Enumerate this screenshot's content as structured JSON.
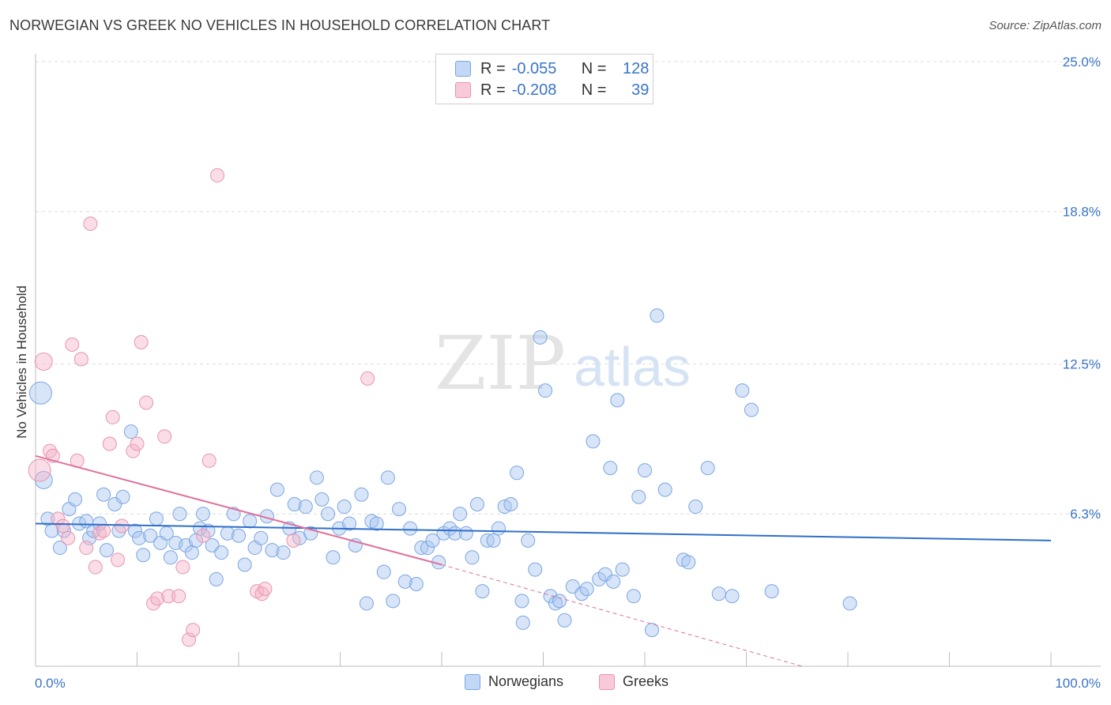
{
  "header": {
    "title": "NORWEGIAN VS GREEK NO VEHICLES IN HOUSEHOLD CORRELATION CHART",
    "source": "Source: ZipAtlas.com"
  },
  "watermark": {
    "zip": "ZIP",
    "atlas": "atlas"
  },
  "legend": {
    "rows": [
      {
        "r_label": "R =",
        "r_value": "-0.055",
        "n_label": "N =",
        "n_value": "128",
        "color": "#a9c6f2"
      },
      {
        "r_label": "R =",
        "r_value": "-0.208",
        "n_label": "N =",
        "n_value": "39",
        "color": "#f5b3c8"
      }
    ]
  },
  "bottom_legend": [
    {
      "label": "Norwegians",
      "color": "#a9c6f2"
    },
    {
      "label": "Greeks",
      "color": "#f5b3c8"
    }
  ],
  "chart_data": {
    "type": "scatter",
    "title": "NORWEGIAN VS GREEK NO VEHICLES IN HOUSEHOLD CORRELATION CHART",
    "xlabel": "",
    "ylabel": "No Vehicles in Household",
    "xlim": [
      0,
      100
    ],
    "ylim": [
      0,
      25
    ],
    "x_tick_labels": [
      "0.0%",
      "100.0%"
    ],
    "y_ticks": [
      6.3,
      12.5,
      18.8,
      25.0
    ],
    "y_tick_labels": [
      "6.3%",
      "12.5%",
      "18.8%",
      "25.0%"
    ],
    "grid": true,
    "series": [
      {
        "name": "Norwegians",
        "color": "#a9c6f2",
        "stroke": "#7aa6e0",
        "trend": {
          "x0": 0,
          "y0": 5.9,
          "x1": 100,
          "y1": 5.2,
          "color": "#2f6fc9"
        },
        "points": [
          [
            0.5,
            11.3,
            3
          ],
          [
            0.8,
            7.7,
            2
          ],
          [
            1.2,
            6.1,
            1
          ],
          [
            1.6,
            5.6,
            1
          ],
          [
            2.4,
            4.9,
            1
          ],
          [
            2.8,
            5.6,
            1
          ],
          [
            3.3,
            6.5,
            1
          ],
          [
            3.9,
            6.9,
            1
          ],
          [
            4.3,
            5.9,
            1
          ],
          [
            5.0,
            6.0,
            1
          ],
          [
            5.3,
            5.3,
            1
          ],
          [
            5.7,
            5.6,
            1
          ],
          [
            6.3,
            5.9,
            1
          ],
          [
            6.7,
            7.1,
            1
          ],
          [
            7.0,
            4.8,
            1
          ],
          [
            7.8,
            6.7,
            1
          ],
          [
            8.2,
            5.6,
            1
          ],
          [
            8.6,
            7.0,
            1
          ],
          [
            9.4,
            9.7,
            1
          ],
          [
            9.8,
            5.6,
            1
          ],
          [
            10.2,
            5.3,
            1
          ],
          [
            10.6,
            4.6,
            1
          ],
          [
            11.3,
            5.4,
            1
          ],
          [
            11.9,
            6.1,
            1
          ],
          [
            12.3,
            5.1,
            1
          ],
          [
            12.9,
            5.5,
            1
          ],
          [
            13.3,
            4.5,
            1
          ],
          [
            13.8,
            5.1,
            1
          ],
          [
            14.2,
            6.3,
            1
          ],
          [
            14.8,
            5.0,
            1
          ],
          [
            15.4,
            4.7,
            1
          ],
          [
            15.8,
            5.2,
            1
          ],
          [
            16.2,
            5.7,
            1
          ],
          [
            16.5,
            6.3,
            1
          ],
          [
            17.0,
            5.6,
            1
          ],
          [
            17.4,
            5.0,
            1
          ],
          [
            17.8,
            3.6,
            1
          ],
          [
            18.3,
            4.7,
            1
          ],
          [
            18.9,
            5.5,
            1
          ],
          [
            19.5,
            6.3,
            1
          ],
          [
            20.0,
            5.4,
            1
          ],
          [
            20.6,
            4.2,
            1
          ],
          [
            21.1,
            6.0,
            1
          ],
          [
            21.6,
            4.9,
            1
          ],
          [
            22.2,
            5.3,
            1
          ],
          [
            22.8,
            6.2,
            1
          ],
          [
            23.3,
            4.8,
            1
          ],
          [
            23.8,
            7.3,
            1
          ],
          [
            24.4,
            4.7,
            1
          ],
          [
            25.0,
            5.7,
            1
          ],
          [
            25.5,
            6.7,
            1
          ],
          [
            26.0,
            5.3,
            1
          ],
          [
            26.6,
            6.6,
            1
          ],
          [
            27.1,
            5.5,
            1
          ],
          [
            27.7,
            7.8,
            1
          ],
          [
            28.2,
            6.9,
            1
          ],
          [
            28.8,
            6.3,
            1
          ],
          [
            29.3,
            4.5,
            1
          ],
          [
            29.9,
            5.7,
            1
          ],
          [
            30.4,
            6.6,
            1
          ],
          [
            30.9,
            5.9,
            1
          ],
          [
            31.5,
            5.0,
            1
          ],
          [
            32.1,
            7.1,
            1
          ],
          [
            32.6,
            2.6,
            1
          ],
          [
            33.1,
            6.0,
            1
          ],
          [
            33.6,
            5.9,
            1
          ],
          [
            34.3,
            3.9,
            1
          ],
          [
            34.7,
            7.8,
            1
          ],
          [
            35.2,
            2.7,
            1
          ],
          [
            35.8,
            6.5,
            1
          ],
          [
            36.4,
            3.5,
            1
          ],
          [
            36.9,
            5.7,
            1
          ],
          [
            37.5,
            3.4,
            1
          ],
          [
            38.0,
            4.9,
            1
          ],
          [
            38.6,
            4.9,
            1
          ],
          [
            39.1,
            5.2,
            1
          ],
          [
            39.7,
            4.3,
            1
          ],
          [
            40.2,
            5.5,
            1
          ],
          [
            40.8,
            5.7,
            1
          ],
          [
            41.3,
            5.5,
            1
          ],
          [
            41.8,
            6.3,
            1
          ],
          [
            42.4,
            5.5,
            1
          ],
          [
            43.0,
            4.5,
            1
          ],
          [
            43.5,
            6.7,
            1
          ],
          [
            44.0,
            3.1,
            1
          ],
          [
            44.5,
            5.2,
            1
          ],
          [
            45.1,
            5.2,
            1
          ],
          [
            45.6,
            5.7,
            1
          ],
          [
            46.2,
            6.6,
            1
          ],
          [
            46.8,
            6.7,
            1
          ],
          [
            47.4,
            8.0,
            1
          ],
          [
            47.9,
            2.7,
            1
          ],
          [
            48.0,
            1.8,
            1
          ],
          [
            48.5,
            5.2,
            1
          ],
          [
            49.2,
            4.0,
            1
          ],
          [
            49.7,
            13.6,
            1
          ],
          [
            50.2,
            11.4,
            1
          ],
          [
            50.7,
            2.9,
            1
          ],
          [
            51.2,
            2.6,
            1
          ],
          [
            51.6,
            2.7,
            1
          ],
          [
            52.1,
            1.9,
            1
          ],
          [
            52.9,
            3.3,
            1
          ],
          [
            53.8,
            3.0,
            1
          ],
          [
            54.3,
            3.2,
            1
          ],
          [
            54.9,
            9.3,
            1
          ],
          [
            55.5,
            3.6,
            1
          ],
          [
            56.1,
            3.8,
            1
          ],
          [
            56.6,
            8.2,
            1
          ],
          [
            56.9,
            3.5,
            1
          ],
          [
            57.3,
            11.0,
            1
          ],
          [
            57.8,
            4.0,
            1
          ],
          [
            58.9,
            2.9,
            1
          ],
          [
            59.4,
            7.0,
            1
          ],
          [
            60.0,
            8.1,
            1
          ],
          [
            60.7,
            1.5,
            1
          ],
          [
            61.2,
            14.5,
            1
          ],
          [
            62.0,
            7.3,
            1
          ],
          [
            63.8,
            4.4,
            1
          ],
          [
            64.3,
            4.3,
            1
          ],
          [
            65.0,
            6.6,
            1
          ],
          [
            66.2,
            8.2,
            1
          ],
          [
            67.3,
            3.0,
            1
          ],
          [
            68.6,
            2.9,
            1
          ],
          [
            69.6,
            11.4,
            1
          ],
          [
            70.5,
            10.6,
            1
          ],
          [
            72.5,
            3.1,
            1
          ],
          [
            80.2,
            2.6,
            1
          ]
        ]
      },
      {
        "name": "Greeks",
        "color": "#f5b3c8",
        "stroke": "#e895b0",
        "trend": {
          "x0": 0,
          "y0": 8.7,
          "x1": 40,
          "y1": 4.2,
          "color": "#e0709a"
        },
        "trend_extension": {
          "x0": 40,
          "y0": 4.2,
          "x1": 75.5,
          "y1": 0.0
        },
        "points": [
          [
            0.4,
            8.1,
            3
          ],
          [
            0.8,
            12.6,
            2
          ],
          [
            1.4,
            8.9,
            1
          ],
          [
            1.7,
            8.7,
            1
          ],
          [
            2.2,
            6.1,
            1
          ],
          [
            2.7,
            5.8,
            1
          ],
          [
            3.2,
            5.3,
            1
          ],
          [
            3.6,
            13.3,
            1
          ],
          [
            4.1,
            8.5,
            1
          ],
          [
            4.5,
            12.7,
            1
          ],
          [
            5.0,
            4.9,
            1
          ],
          [
            5.4,
            18.3,
            1
          ],
          [
            5.9,
            4.1,
            1
          ],
          [
            6.3,
            5.5,
            1
          ],
          [
            6.7,
            5.6,
            1
          ],
          [
            7.3,
            9.2,
            1
          ],
          [
            7.6,
            10.3,
            1
          ],
          [
            8.1,
            4.4,
            1
          ],
          [
            8.5,
            5.8,
            1
          ],
          [
            9.6,
            8.9,
            1
          ],
          [
            10.0,
            9.2,
            1
          ],
          [
            10.4,
            13.4,
            1
          ],
          [
            10.9,
            10.9,
            1
          ],
          [
            11.6,
            2.6,
            1
          ],
          [
            12.0,
            2.8,
            1
          ],
          [
            12.7,
            9.5,
            1
          ],
          [
            13.1,
            2.9,
            1
          ],
          [
            14.1,
            2.9,
            1
          ],
          [
            14.5,
            4.1,
            1
          ],
          [
            15.1,
            1.1,
            1
          ],
          [
            15.5,
            1.5,
            1
          ],
          [
            16.5,
            5.4,
            1
          ],
          [
            17.1,
            8.5,
            1
          ],
          [
            17.9,
            20.3,
            1
          ],
          [
            21.8,
            3.1,
            1
          ],
          [
            22.3,
            3.0,
            1
          ],
          [
            22.6,
            3.2,
            1
          ],
          [
            25.4,
            5.2,
            1
          ],
          [
            32.7,
            11.9,
            1
          ]
        ]
      }
    ]
  }
}
